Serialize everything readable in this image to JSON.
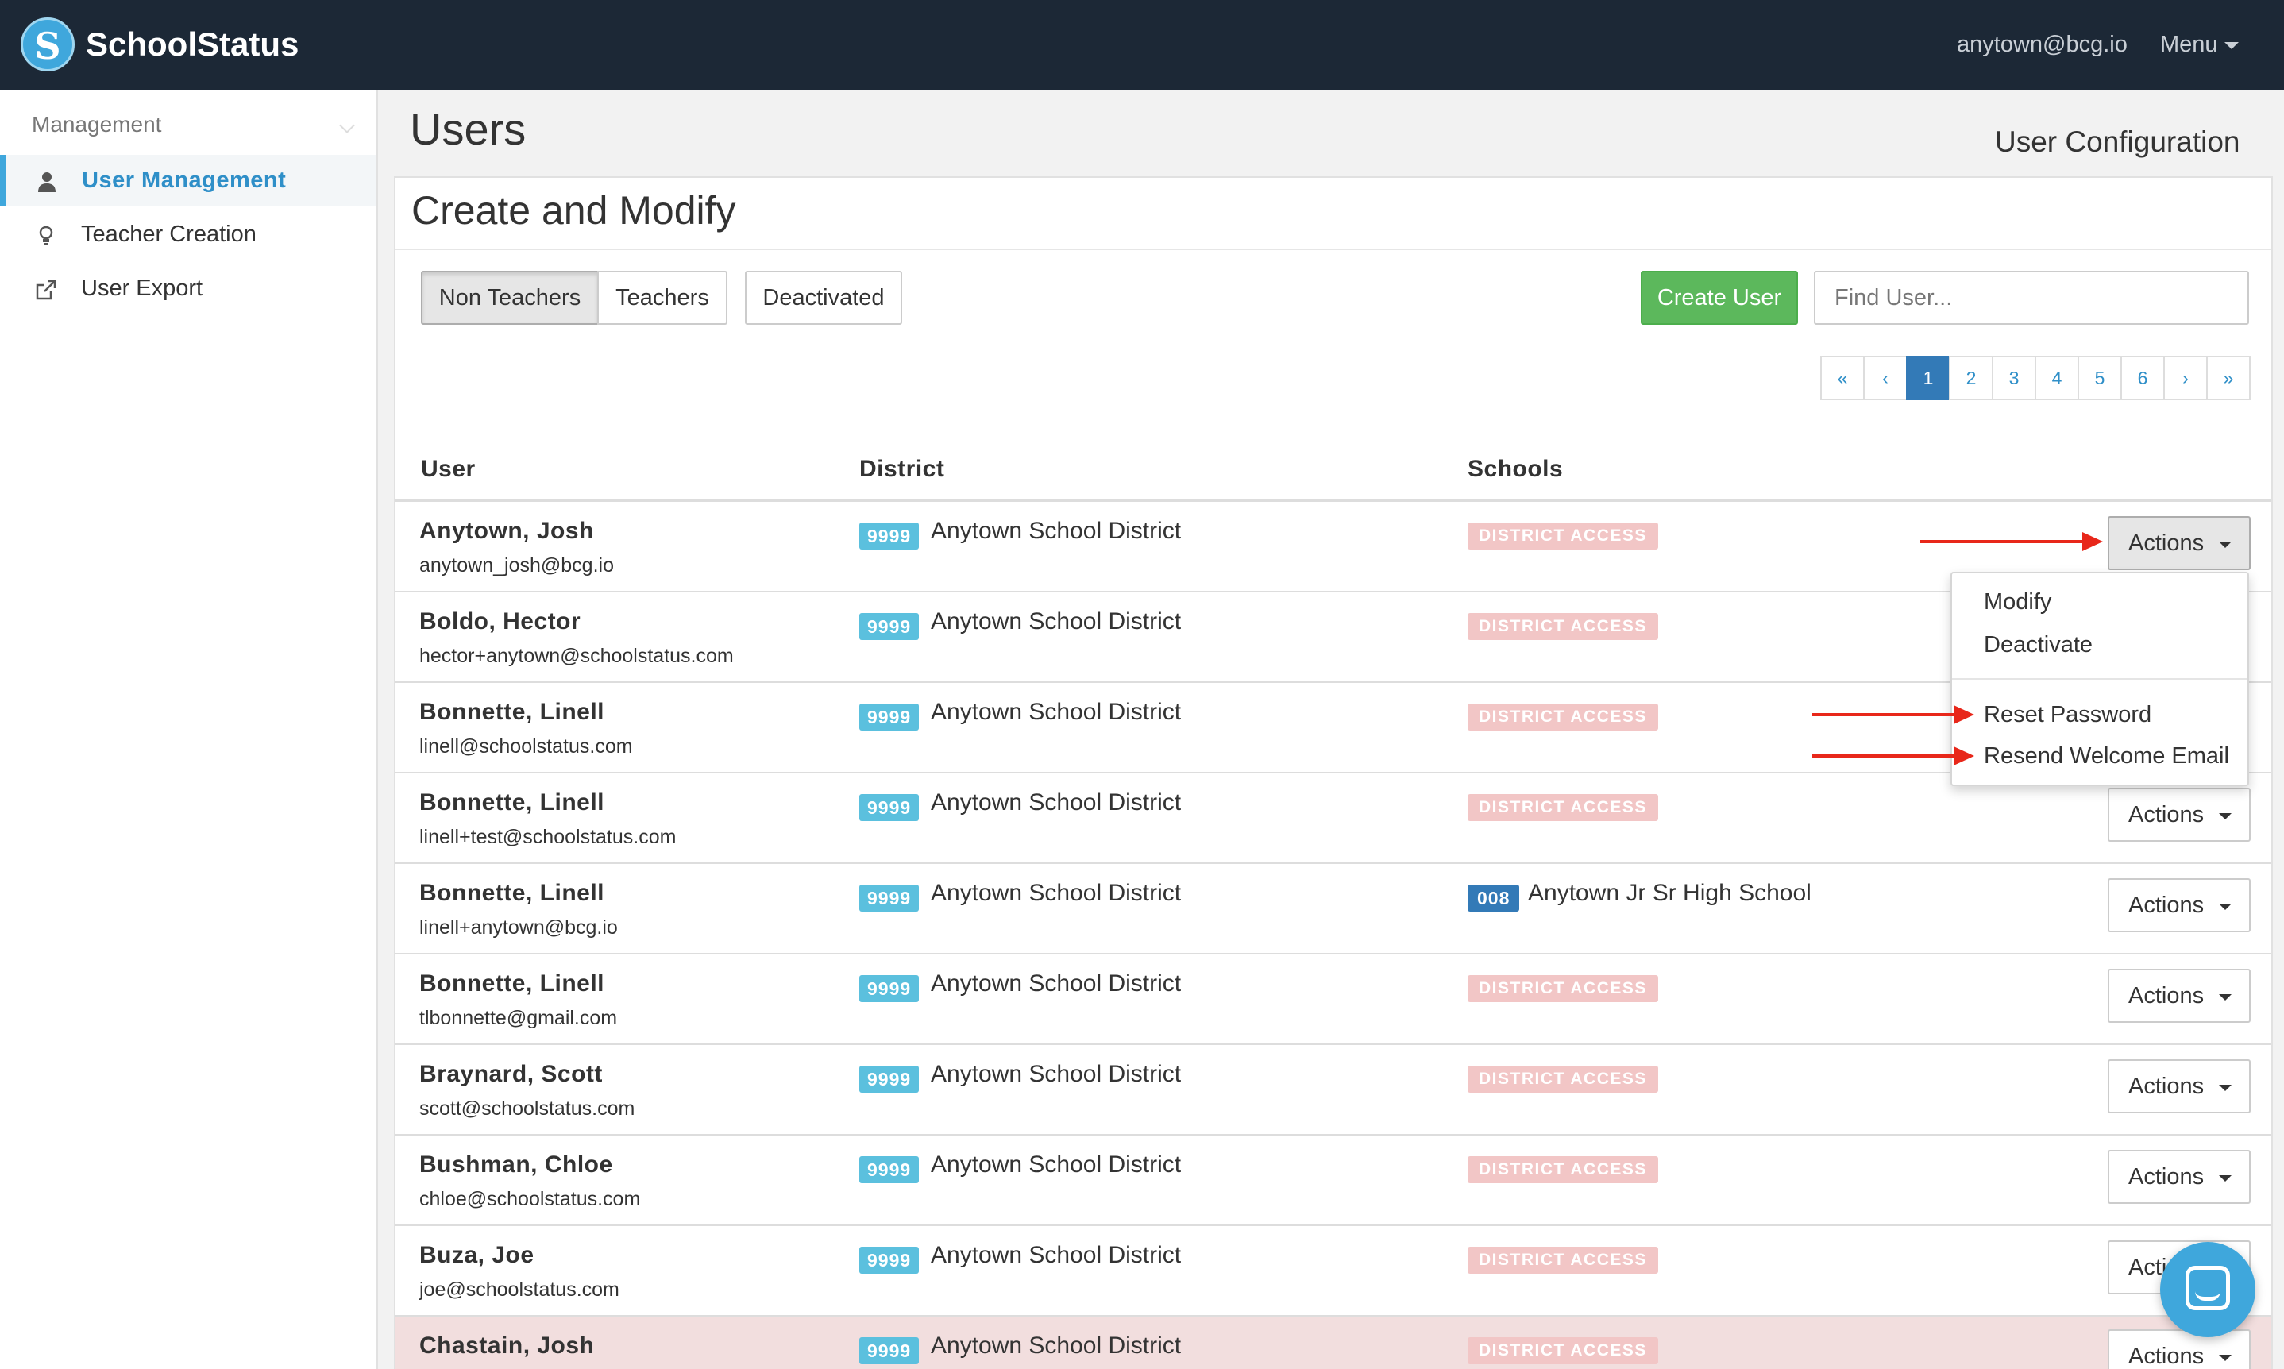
{
  "navbar": {
    "logo_letter": "S",
    "brand": "SchoolStatus",
    "user_email": "anytown@bcg.io",
    "menu_label": "Menu"
  },
  "sidebar": {
    "header": "Management",
    "items": [
      {
        "label": "User Management",
        "icon": "user-icon",
        "active": true
      },
      {
        "label": "Teacher Creation",
        "icon": "lightbulb-icon",
        "active": false
      },
      {
        "label": "User Export",
        "icon": "external-link-icon",
        "active": false
      }
    ]
  },
  "page": {
    "title": "Users",
    "subtitle": "User Configuration"
  },
  "panel": {
    "title": "Create and Modify",
    "filters": [
      "Non Teachers",
      "Teachers"
    ],
    "deactivated_label": "Deactivated",
    "create_label": "Create User",
    "search_placeholder": "Find User...",
    "pagination": [
      "«",
      "‹",
      "1",
      "2",
      "3",
      "4",
      "5",
      "6",
      "›",
      "»"
    ],
    "current_page": "1"
  },
  "table": {
    "headers": [
      "User",
      "District",
      "Schools"
    ],
    "action_label": "Actions",
    "rows": [
      {
        "name": "Anytown, Josh",
        "email": "anytown_josh@bcg.io",
        "district_code": "9999",
        "district": "Anytown School District",
        "school_badge": "DISTRICT ACCESS",
        "school_code": "",
        "school": ""
      },
      {
        "name": "Boldo, Hector",
        "email": "hector+anytown@schoolstatus.com",
        "district_code": "9999",
        "district": "Anytown School District",
        "school_badge": "DISTRICT ACCESS",
        "school_code": "",
        "school": ""
      },
      {
        "name": "Bonnette, Linell",
        "email": "linell@schoolstatus.com",
        "district_code": "9999",
        "district": "Anytown School District",
        "school_badge": "DISTRICT ACCESS",
        "school_code": "",
        "school": ""
      },
      {
        "name": "Bonnette, Linell",
        "email": "linell+test@schoolstatus.com",
        "district_code": "9999",
        "district": "Anytown School District",
        "school_badge": "DISTRICT ACCESS",
        "school_code": "",
        "school": ""
      },
      {
        "name": "Bonnette, Linell",
        "email": "linell+anytown@bcg.io",
        "district_code": "9999",
        "district": "Anytown School District",
        "school_badge": "",
        "school_code": "008",
        "school": "Anytown Jr Sr High School"
      },
      {
        "name": "Bonnette, Linell",
        "email": "tlbonnette@gmail.com",
        "district_code": "9999",
        "district": "Anytown School District",
        "school_badge": "DISTRICT ACCESS",
        "school_code": "",
        "school": ""
      },
      {
        "name": "Braynard, Scott",
        "email": "scott@schoolstatus.com",
        "district_code": "9999",
        "district": "Anytown School District",
        "school_badge": "DISTRICT ACCESS",
        "school_code": "",
        "school": ""
      },
      {
        "name": "Bushman, Chloe",
        "email": "chloe@schoolstatus.com",
        "district_code": "9999",
        "district": "Anytown School District",
        "school_badge": "DISTRICT ACCESS",
        "school_code": "",
        "school": ""
      },
      {
        "name": "Buza, Joe",
        "email": "joe@schoolstatus.com",
        "district_code": "9999",
        "district": "Anytown School District",
        "school_badge": "DISTRICT ACCESS",
        "school_code": "",
        "school": ""
      },
      {
        "name": "Chastain, Josh",
        "email": "",
        "district_code": "9999",
        "district": "Anytown School District",
        "school_badge": "DISTRICT ACCESS",
        "school_code": "",
        "school": ""
      }
    ]
  },
  "dropdown": {
    "items": [
      "Modify",
      "Deactivate",
      "Reset Password",
      "Resend Welcome Email"
    ]
  },
  "colors": {
    "navbar": "#1c2836",
    "accent": "#3fa7dc",
    "create": "#5cb85c",
    "arrow": "#e8271a",
    "highlight_row": "#f2dede"
  },
  "chat": {
    "icon": "chat-icon"
  }
}
